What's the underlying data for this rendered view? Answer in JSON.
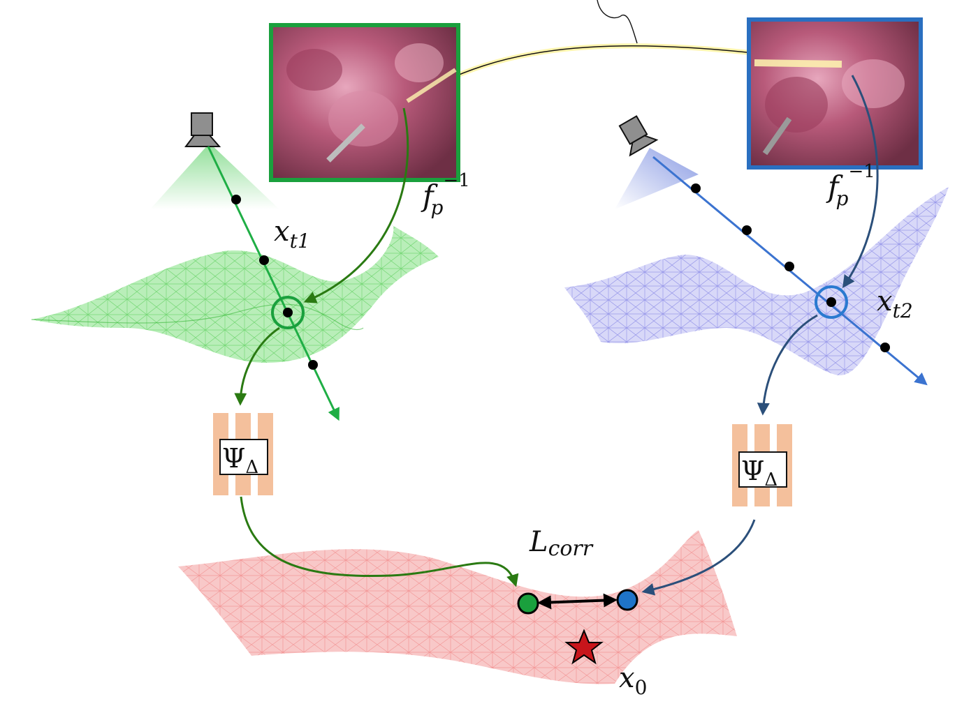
{
  "labels": {
    "f_inverse_left": {
      "base": "f",
      "sub": "p",
      "sup": "−1"
    },
    "f_inverse_right": {
      "base": "f",
      "sub": "p",
      "sup": "−1"
    },
    "x_t1": {
      "base": "x",
      "sub": "t1"
    },
    "x_t2": {
      "base": "x",
      "sub": "t2"
    },
    "x_0": {
      "base": "x",
      "sub": "0"
    },
    "l_corr": {
      "base": "L",
      "sub": "corr"
    },
    "psi_left": {
      "base": "Ψ",
      "sub": "Δ"
    },
    "psi_right": {
      "base": "Ψ",
      "sub": "Δ"
    }
  },
  "colors": {
    "green": "#1a9a3a",
    "dark_green": "#2a7a12",
    "blue": "#2f6fc7",
    "dark_blue": "#2b4f7a",
    "green_mesh": "#6fdc6f",
    "blue_mesh": "#8f8fe8",
    "red_mesh": "#f08a8a",
    "tissue": "#c06a86",
    "network": "#f4c09c",
    "star": "#c8151b"
  },
  "icons": [
    "camera-icon",
    "star-icon"
  ]
}
